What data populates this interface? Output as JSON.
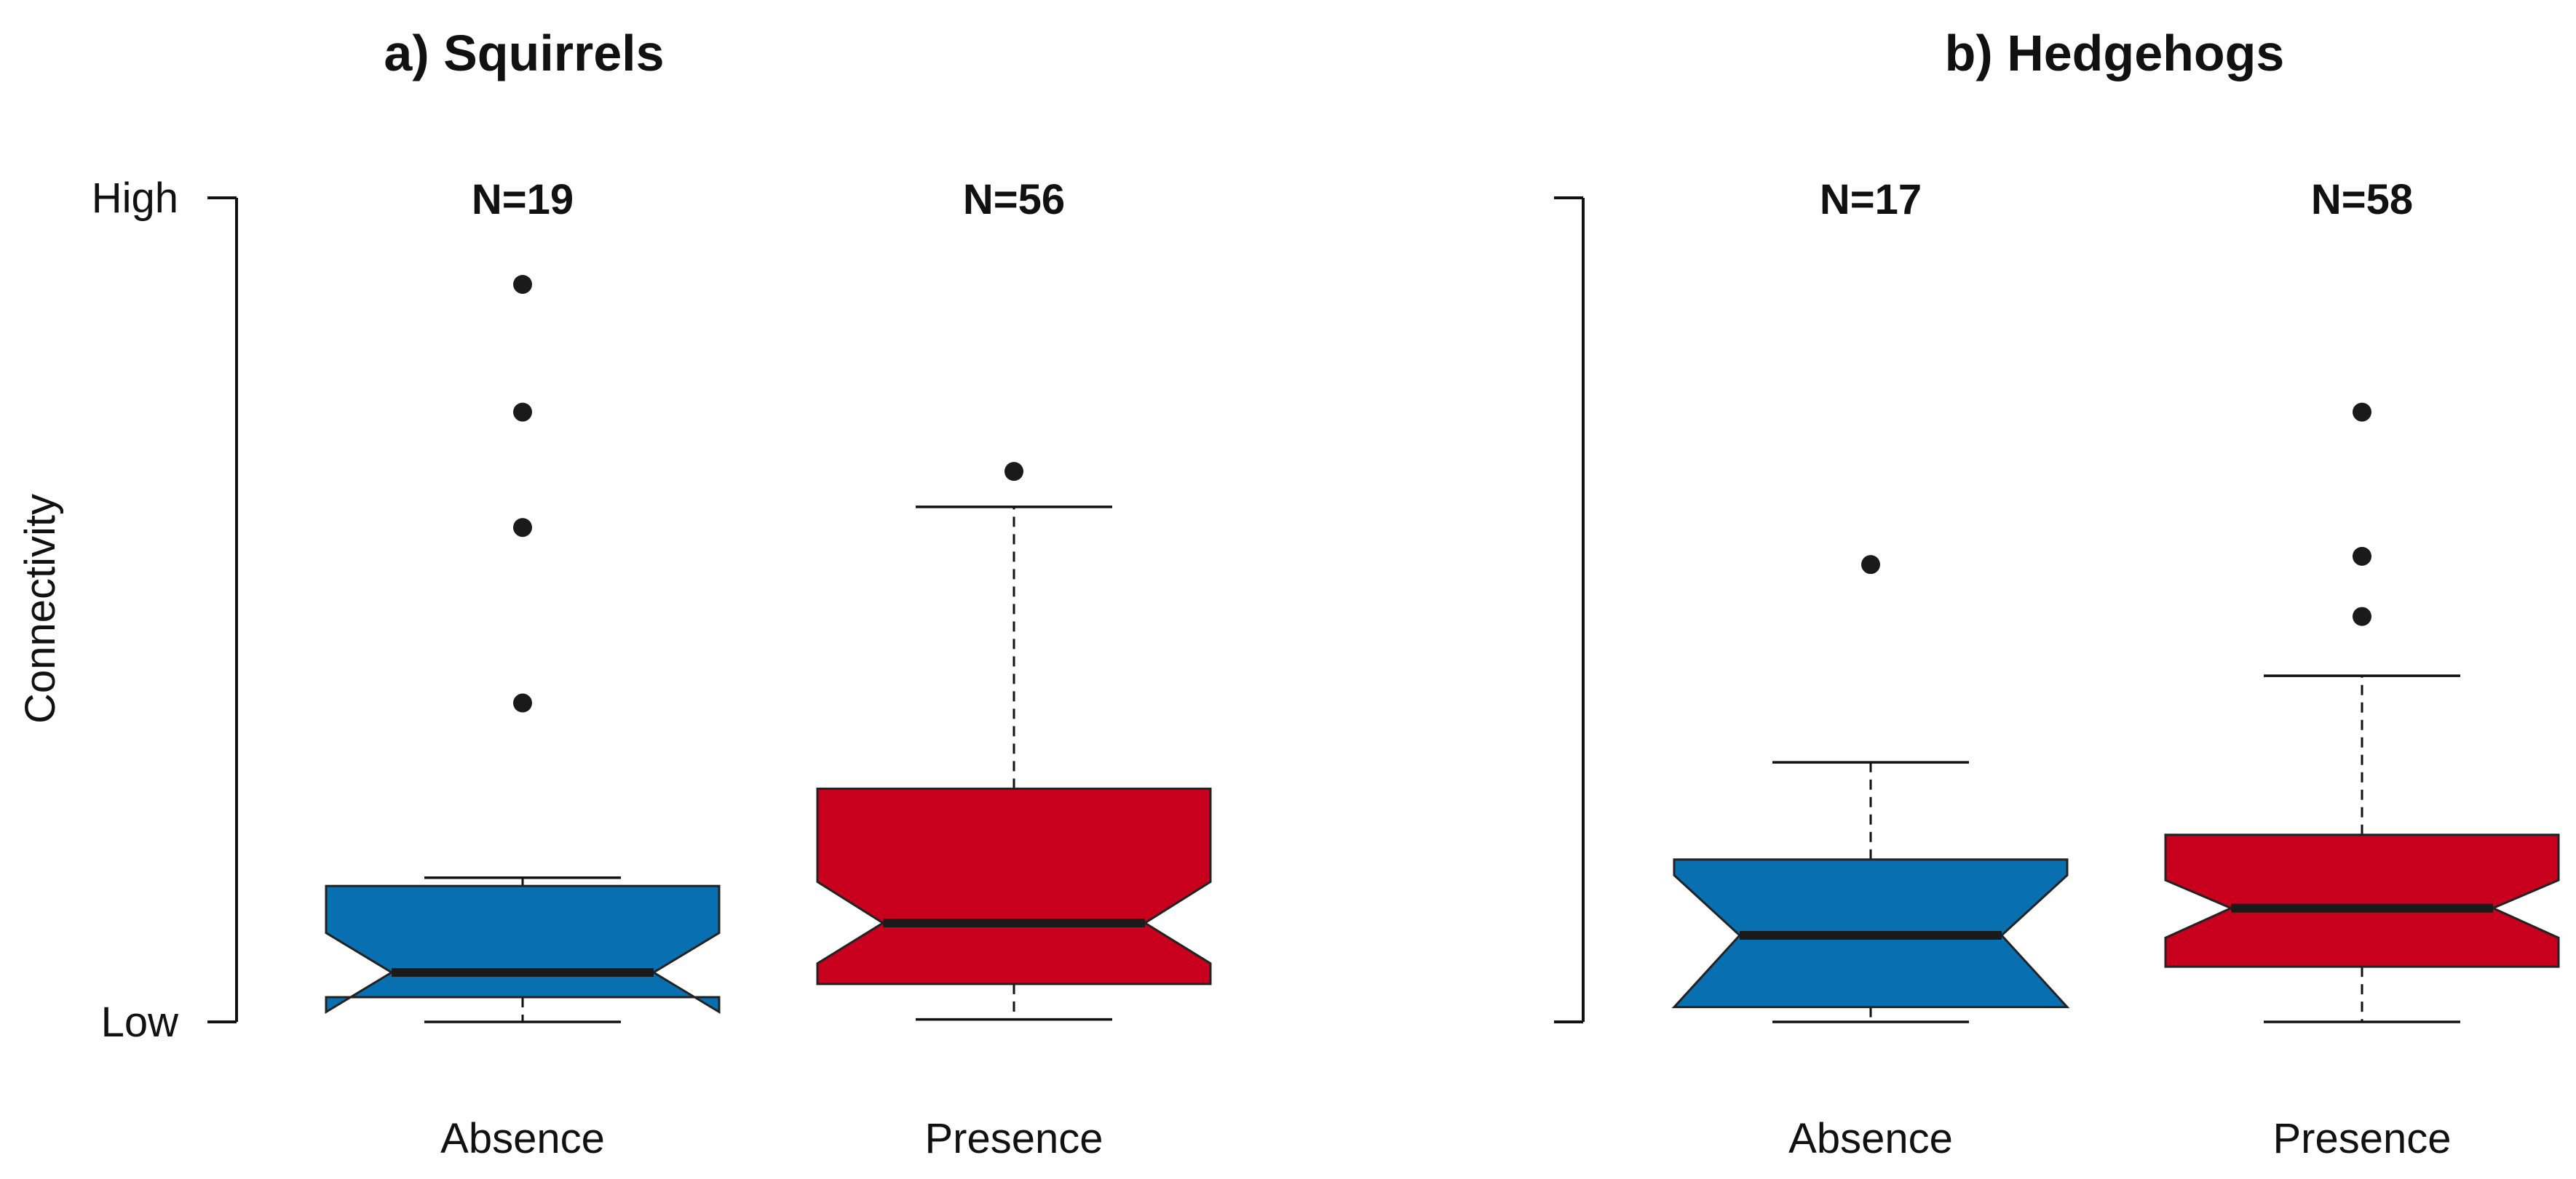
{
  "chart_data": [
    {
      "type": "boxplot",
      "notched": true,
      "title": "a) Squirrels",
      "ylabel": "Connectivity",
      "ylim": [
        0,
        1
      ],
      "y_ticks": [
        {
          "value": 0,
          "label": "Low"
        },
        {
          "value": 1,
          "label": "High"
        }
      ],
      "categories": [
        "Absence",
        "Presence"
      ],
      "boxes": [
        {
          "category": "Absence",
          "n_label": "N=19",
          "color": "#0870b0",
          "whisker_low": 0.0,
          "q1": 0.03,
          "median": 0.06,
          "q3": 0.165,
          "whisker_high": 0.175,
          "notch_low": 0.012,
          "notch_high": 0.108,
          "outliers": [
            0.895,
            0.74,
            0.6,
            0.387
          ]
        },
        {
          "category": "Presence",
          "n_label": "N=56",
          "color": "#c8001e",
          "whisker_low": 0.003,
          "q1": 0.046,
          "median": 0.12,
          "q3": 0.283,
          "whisker_high": 0.625,
          "notch_low": 0.071,
          "notch_high": 0.17,
          "outliers": [
            0.668
          ]
        }
      ]
    },
    {
      "type": "boxplot",
      "notched": true,
      "title": "b) Hedgehogs",
      "ylabel": "",
      "ylim": [
        0,
        1
      ],
      "y_ticks": [
        {
          "value": 0,
          "label": ""
        },
        {
          "value": 1,
          "label": ""
        }
      ],
      "categories": [
        "Absence",
        "Presence"
      ],
      "boxes": [
        {
          "category": "Absence",
          "n_label": "N=17",
          "color": "#0870b0",
          "whisker_low": 0.0,
          "q1": 0.018,
          "median": 0.105,
          "q3": 0.197,
          "whisker_high": 0.315,
          "notch_low": 0.018,
          "notch_high": 0.178,
          "outliers": [
            0.555
          ]
        },
        {
          "category": "Presence",
          "n_label": "N=58",
          "color": "#c8001e",
          "whisker_low": 0.0,
          "q1": 0.067,
          "median": 0.138,
          "q3": 0.227,
          "whisker_high": 0.42,
          "notch_low": 0.102,
          "notch_high": 0.172,
          "outliers": [
            0.74,
            0.565,
            0.492
          ]
        }
      ]
    }
  ]
}
